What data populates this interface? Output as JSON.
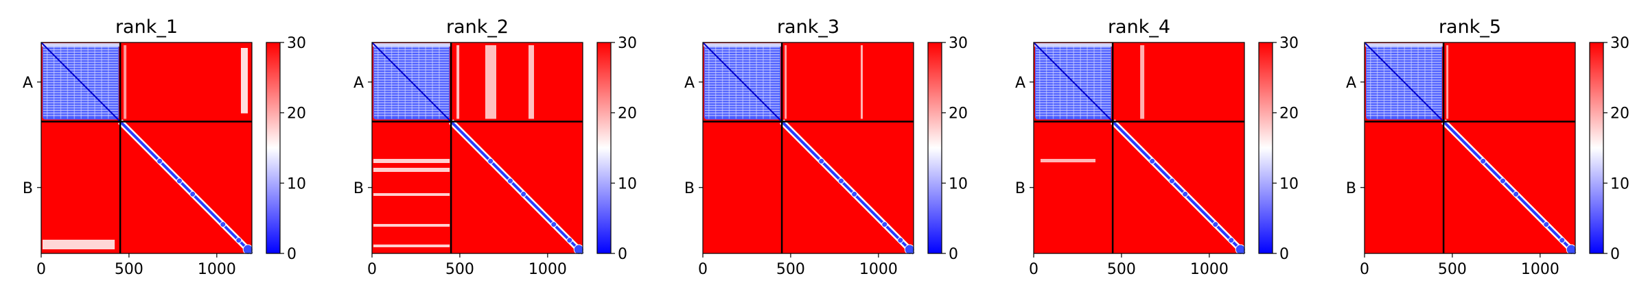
{
  "chart_data": [
    {
      "type": "heatmap",
      "title": "rank_1",
      "chain_labels": [
        "A",
        "B"
      ],
      "chain_boundary": 450,
      "total_length": 1200,
      "x_ticks": [
        "0",
        "500",
        "1000"
      ],
      "x_tick_values": [
        0,
        500,
        1000
      ],
      "colorbar_ticks": [
        "0",
        "10",
        "20",
        "30"
      ],
      "colorbar_values": [
        0,
        10,
        20,
        30
      ],
      "vmin": 0,
      "vmax": 30,
      "colormap": "bwr",
      "off_diagonal_blocks": "mostly red (~30); pale streaks in B-A lower-left near bottom rows and a light vertical band near x=1150 in A-B"
    },
    {
      "type": "heatmap",
      "title": "rank_2",
      "chain_labels": [
        "A",
        "B"
      ],
      "chain_boundary": 450,
      "total_length": 1200,
      "x_ticks": [
        "0",
        "500",
        "1000"
      ],
      "x_tick_values": [
        0,
        500,
        1000
      ],
      "colorbar_ticks": [
        "0",
        "10",
        "20",
        "30"
      ],
      "colorbar_values": [
        0,
        10,
        20,
        30
      ],
      "vmin": 0,
      "vmax": 30,
      "colormap": "bwr",
      "off_diagonal_blocks": "red with pale vertical bands in A-B (around x=650-700, 880) and pale horizontal streaks in B-A"
    },
    {
      "type": "heatmap",
      "title": "rank_3",
      "chain_labels": [
        "A",
        "B"
      ],
      "chain_boundary": 450,
      "total_length": 1200,
      "x_ticks": [
        "0",
        "500",
        "1000"
      ],
      "x_tick_values": [
        0,
        500,
        1000
      ],
      "colorbar_ticks": [
        "0",
        "10",
        "20",
        "30"
      ],
      "colorbar_values": [
        0,
        10,
        20,
        30
      ],
      "vmin": 0,
      "vmax": 30,
      "colormap": "bwr",
      "off_diagonal_blocks": "nearly uniform red (~30)"
    },
    {
      "type": "heatmap",
      "title": "rank_4",
      "chain_labels": [
        "A",
        "B"
      ],
      "chain_boundary": 450,
      "total_length": 1200,
      "x_ticks": [
        "0",
        "500",
        "1000"
      ],
      "x_tick_values": [
        0,
        500,
        1000
      ],
      "colorbar_ticks": [
        "0",
        "10",
        "20",
        "30"
      ],
      "colorbar_values": [
        0,
        10,
        20,
        30
      ],
      "vmin": 0,
      "vmax": 30,
      "colormap": "bwr",
      "off_diagonal_blocks": "nearly uniform red with faint pale streak in B-A"
    },
    {
      "type": "heatmap",
      "title": "rank_5",
      "chain_labels": [
        "A",
        "B"
      ],
      "chain_boundary": 450,
      "total_length": 1200,
      "x_ticks": [
        "0",
        "500",
        "1000"
      ],
      "x_tick_values": [
        0,
        500,
        1000
      ],
      "colorbar_ticks": [
        "0",
        "10",
        "20",
        "30"
      ],
      "colorbar_values": [
        0,
        10,
        20,
        30
      ],
      "vmin": 0,
      "vmax": 30,
      "colormap": "bwr",
      "off_diagonal_blocks": "nearly uniform red (~30)"
    }
  ],
  "colors": {
    "low": "#0000ff",
    "mid": "#ffffff",
    "high": "#ff0000",
    "separator": "#000000"
  }
}
